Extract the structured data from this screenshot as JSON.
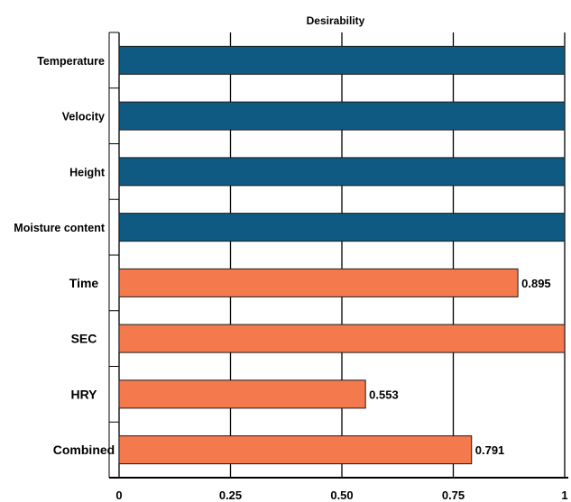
{
  "chart_data": {
    "type": "bar",
    "orientation": "horizontal",
    "title": "Desirability",
    "xlim": [
      0,
      1
    ],
    "x_ticks": [
      {
        "value": 0,
        "label": "0"
      },
      {
        "value": 0.25,
        "label": "0.25"
      },
      {
        "value": 0.5,
        "label": "0.50"
      },
      {
        "value": 0.75,
        "label": "0.75"
      },
      {
        "value": 1,
        "label": "1"
      }
    ],
    "grid": true,
    "colors": {
      "factor": "#0f5a82",
      "response": "#f47a4e"
    },
    "bars": [
      {
        "category": "Temperature",
        "value": 1,
        "group": "factor",
        "label": ""
      },
      {
        "category": "Velocity",
        "value": 1,
        "group": "factor",
        "label": ""
      },
      {
        "category": "Height",
        "value": 1,
        "group": "factor",
        "label": ""
      },
      {
        "category": "Moisture content",
        "value": 1,
        "group": "factor",
        "label": ""
      },
      {
        "category": "Time",
        "value": 0.895,
        "group": "response",
        "label": "0.895"
      },
      {
        "category": "SEC",
        "value": 1,
        "group": "response",
        "label": ""
      },
      {
        "category": "HRY",
        "value": 0.553,
        "group": "response",
        "label": "0.553"
      },
      {
        "category": "Combined",
        "value": 0.791,
        "group": "response",
        "label": "0.791"
      }
    ]
  }
}
